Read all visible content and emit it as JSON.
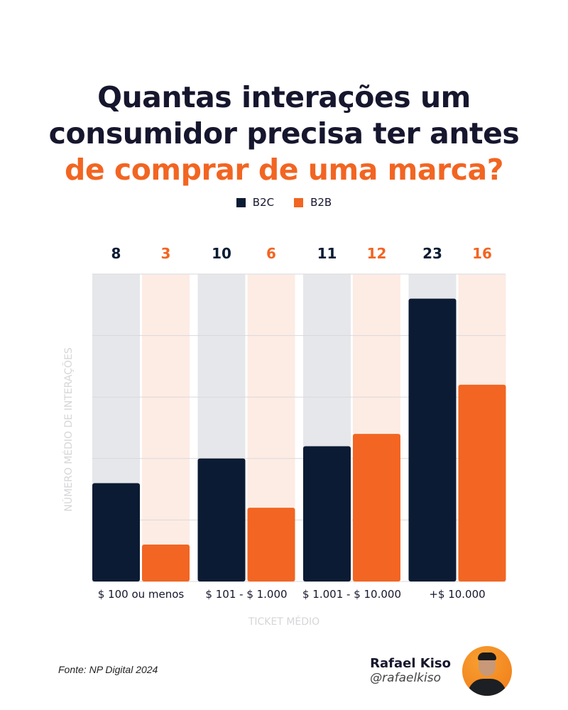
{
  "title": {
    "line1": "Quantas interações um",
    "line2": "consumidor precisa ter antes",
    "line3_highlight": "de comprar de uma marca?"
  },
  "colors": {
    "b2c": "#0b1b33",
    "b2b": "#f26522",
    "b2c_bg": "#e6e7ea",
    "b2b_bg": "#fdece4"
  },
  "chart_data": {
    "type": "bar",
    "categories": [
      "$ 100 ou menos",
      "$ 101 - $ 1.000",
      "$ 1.001 - $ 10.000",
      "+$ 10.000"
    ],
    "series": [
      {
        "name": "B2C",
        "values": [
          8,
          10,
          11,
          23
        ]
      },
      {
        "name": "B2B",
        "values": [
          3,
          6,
          12,
          16
        ]
      }
    ],
    "xlabel": "TICKET MÉDIO",
    "ylabel": "NÚMERO MÉDIO DE INTERAÇÕES",
    "ylim": [
      0,
      25
    ],
    "grid": true,
    "legend": "top-center"
  },
  "footer": {
    "source": "Fonte: NP Digital 2024",
    "author_name": "Rafael Kiso",
    "author_handle": "@rafaelkiso"
  }
}
